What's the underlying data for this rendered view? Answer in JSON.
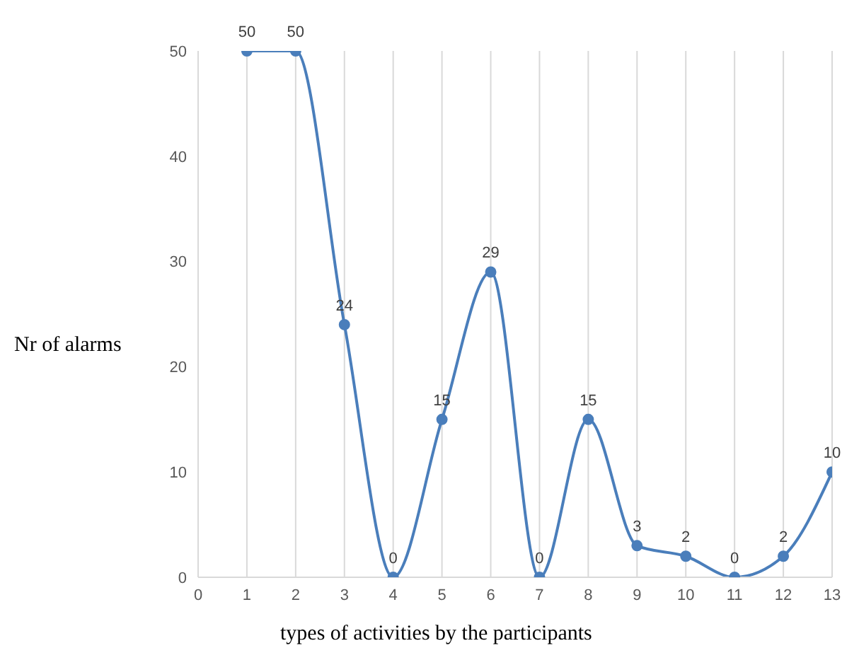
{
  "chart_data": {
    "type": "line",
    "xlabel": "types of activities by the participants",
    "ylabel": "Nr of alarms",
    "x": [
      1,
      2,
      3,
      4,
      5,
      6,
      7,
      8,
      9,
      10,
      11,
      12,
      13
    ],
    "series": [
      {
        "color": "#4a7ebb",
        "values": [
          50,
          50,
          24,
          0,
          15,
          29,
          0,
          15,
          3,
          2,
          0,
          2,
          10
        ]
      }
    ],
    "xlim": [
      0,
      13
    ],
    "xticks": [
      0,
      1,
      2,
      3,
      4,
      5,
      6,
      7,
      8,
      9,
      10,
      11,
      12,
      13
    ],
    "ylim": [
      0,
      50
    ],
    "yticks": [
      0,
      10,
      20,
      30,
      40,
      50
    ],
    "grid": "x",
    "data_labels": true,
    "marker": "circle",
    "line_style": "solid"
  }
}
